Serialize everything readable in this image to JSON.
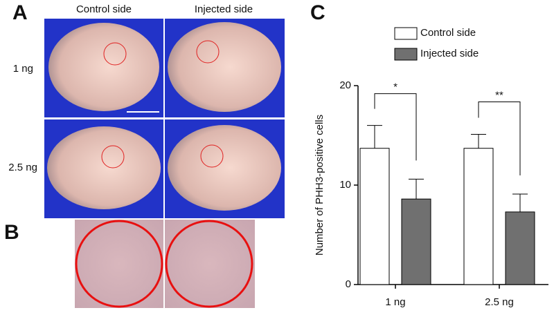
{
  "panels": {
    "a": {
      "label": "A",
      "columns": [
        "Control side",
        "Injected side"
      ],
      "rows": [
        "1 ng",
        "2.5 ng"
      ]
    },
    "b": {
      "label": "B"
    }
  },
  "chart_data": {
    "label": "C",
    "type": "bar",
    "ylabel": "Number of PHH3-positive cells",
    "categories": [
      "1 ng",
      "2.5 ng"
    ],
    "series": [
      {
        "name": "Control side",
        "color": "#ffffff",
        "values": [
          13.7,
          13.7
        ],
        "errors": [
          2.3,
          1.4
        ]
      },
      {
        "name": "Injected side",
        "color": "#707070",
        "values": [
          8.6,
          7.3
        ],
        "errors": [
          2.0,
          1.8
        ]
      }
    ],
    "significance": [
      "*",
      "**"
    ],
    "ylim": [
      0,
      20
    ],
    "yticks": [
      0,
      10,
      20
    ]
  }
}
